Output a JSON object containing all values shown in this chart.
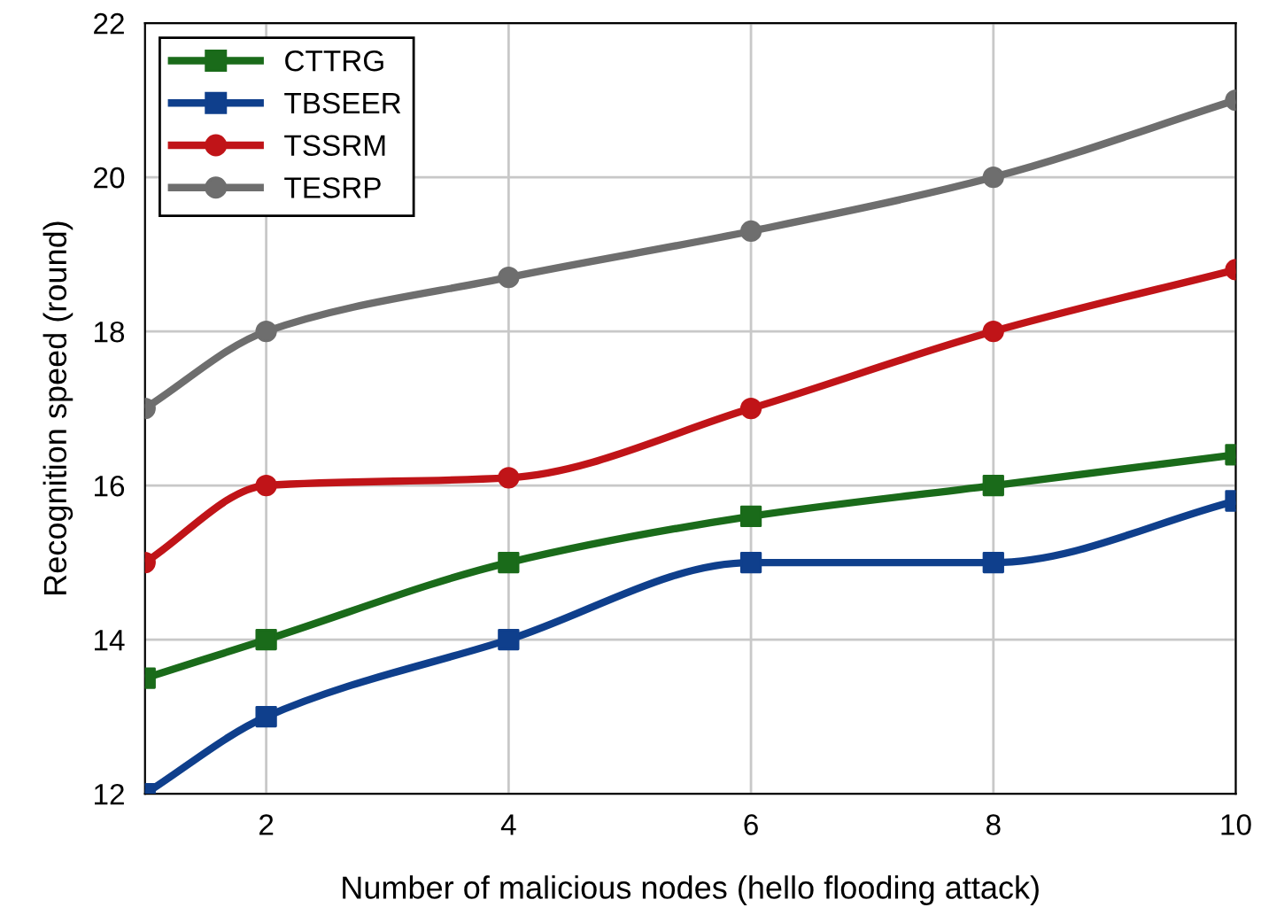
{
  "chart_data": {
    "type": "line",
    "xlabel": "Number of malicious nodes (hello flooding attack)",
    "ylabel": "Recognition speed (round)",
    "x": [
      1,
      2,
      4,
      6,
      8,
      10
    ],
    "series": [
      {
        "name": "CTTRG",
        "color": "#1a6b1a",
        "marker": "square",
        "values": [
          13.5,
          14,
          15,
          15.6,
          16,
          16.4
        ]
      },
      {
        "name": "TBSEER",
        "color": "#0f3f8c",
        "marker": "square",
        "values": [
          12,
          13,
          14,
          15,
          15,
          15.8
        ]
      },
      {
        "name": "TSSRM",
        "color": "#c01418",
        "marker": "circle",
        "values": [
          15,
          16,
          16.1,
          17,
          18,
          18.8
        ]
      },
      {
        "name": "TESRP",
        "color": "#6e6e6e",
        "marker": "circle",
        "values": [
          17,
          18,
          18.7,
          19.3,
          20,
          21
        ]
      }
    ],
    "xlim": [
      1,
      10
    ],
    "xticks": [
      2,
      4,
      6,
      8,
      10
    ],
    "ylim": [
      12,
      22
    ],
    "yticks": [
      12,
      14,
      16,
      18,
      20,
      22
    ],
    "grid": true,
    "legend": "top left",
    "line_style": "solid"
  }
}
